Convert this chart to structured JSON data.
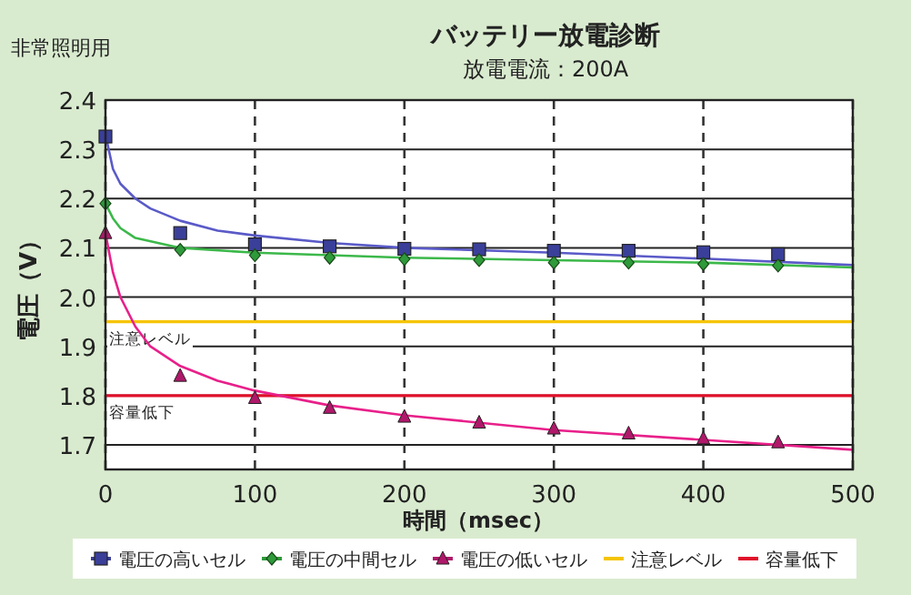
{
  "chart_data": {
    "type": "scatter",
    "title": "バッテリー放電診断",
    "subtitle": "放電電流：200A",
    "xlabel": "時間（msec）",
    "ylabel": "電圧（V）",
    "annotations": [
      "非常照明用"
    ],
    "xlim": [
      0,
      500
    ],
    "xticks": [
      0,
      100,
      200,
      300,
      400,
      500
    ],
    "ylim": [
      1.65,
      2.4
    ],
    "yticks": [
      1.7,
      1.8,
      1.9,
      {
        "value": 2.0,
        "label": "2.0"
      },
      2.1,
      2.2,
      2.3,
      2.4
    ],
    "grid": true,
    "legend": "bottom",
    "x": [
      0,
      50,
      100,
      150,
      200,
      250,
      300,
      350,
      400,
      450
    ],
    "series": [
      {
        "name": "電圧の高いセル",
        "color": "#3a3f9a",
        "marker": "square",
        "values": [
          2.326,
          2.13,
          2.107,
          2.103,
          2.098,
          2.097,
          2.094,
          2.094,
          2.091,
          2.087
        ]
      },
      {
        "name": "電圧の中間セル",
        "color": "#2e9a3a",
        "marker": "diamond",
        "values": [
          2.19,
          2.096,
          2.085,
          2.08,
          2.077,
          2.075,
          2.07,
          2.07,
          2.067,
          2.064
        ]
      },
      {
        "name": "電圧の低いセル",
        "color": "#b0186a",
        "marker": "triangle",
        "values": [
          2.13,
          1.84,
          1.795,
          1.775,
          1.757,
          1.745,
          1.733,
          1.723,
          1.713,
          1.705
        ]
      },
      {
        "type": "line",
        "color": "#5a5ac8",
        "x": [
          0,
          5,
          10,
          20,
          30,
          50,
          75,
          100,
          150,
          200,
          300,
          400,
          500
        ],
        "values": [
          2.33,
          2.26,
          2.23,
          2.2,
          2.18,
          2.155,
          2.135,
          2.125,
          2.11,
          2.1,
          2.09,
          2.078,
          2.065
        ]
      },
      {
        "type": "line",
        "color": "#3cb84a",
        "x": [
          0,
          5,
          10,
          20,
          50,
          100,
          200,
          300,
          400,
          500
        ],
        "values": [
          2.19,
          2.16,
          2.14,
          2.12,
          2.1,
          2.09,
          2.08,
          2.075,
          2.07,
          2.06
        ]
      },
      {
        "type": "line",
        "color": "#e8208a",
        "x": [
          0,
          5,
          10,
          20,
          30,
          50,
          75,
          100,
          150,
          200,
          300,
          400,
          500
        ],
        "values": [
          2.13,
          2.05,
          2.0,
          1.94,
          1.9,
          1.86,
          1.83,
          1.81,
          1.78,
          1.76,
          1.73,
          1.71,
          1.69
        ]
      }
    ],
    "ref_lines": [
      {
        "axis": "y",
        "value": 1.95,
        "label": "注意レベル",
        "color": "#f5c400"
      },
      {
        "axis": "y",
        "value": 1.8,
        "label": "容量低下",
        "color": "#e0102a"
      }
    ]
  }
}
